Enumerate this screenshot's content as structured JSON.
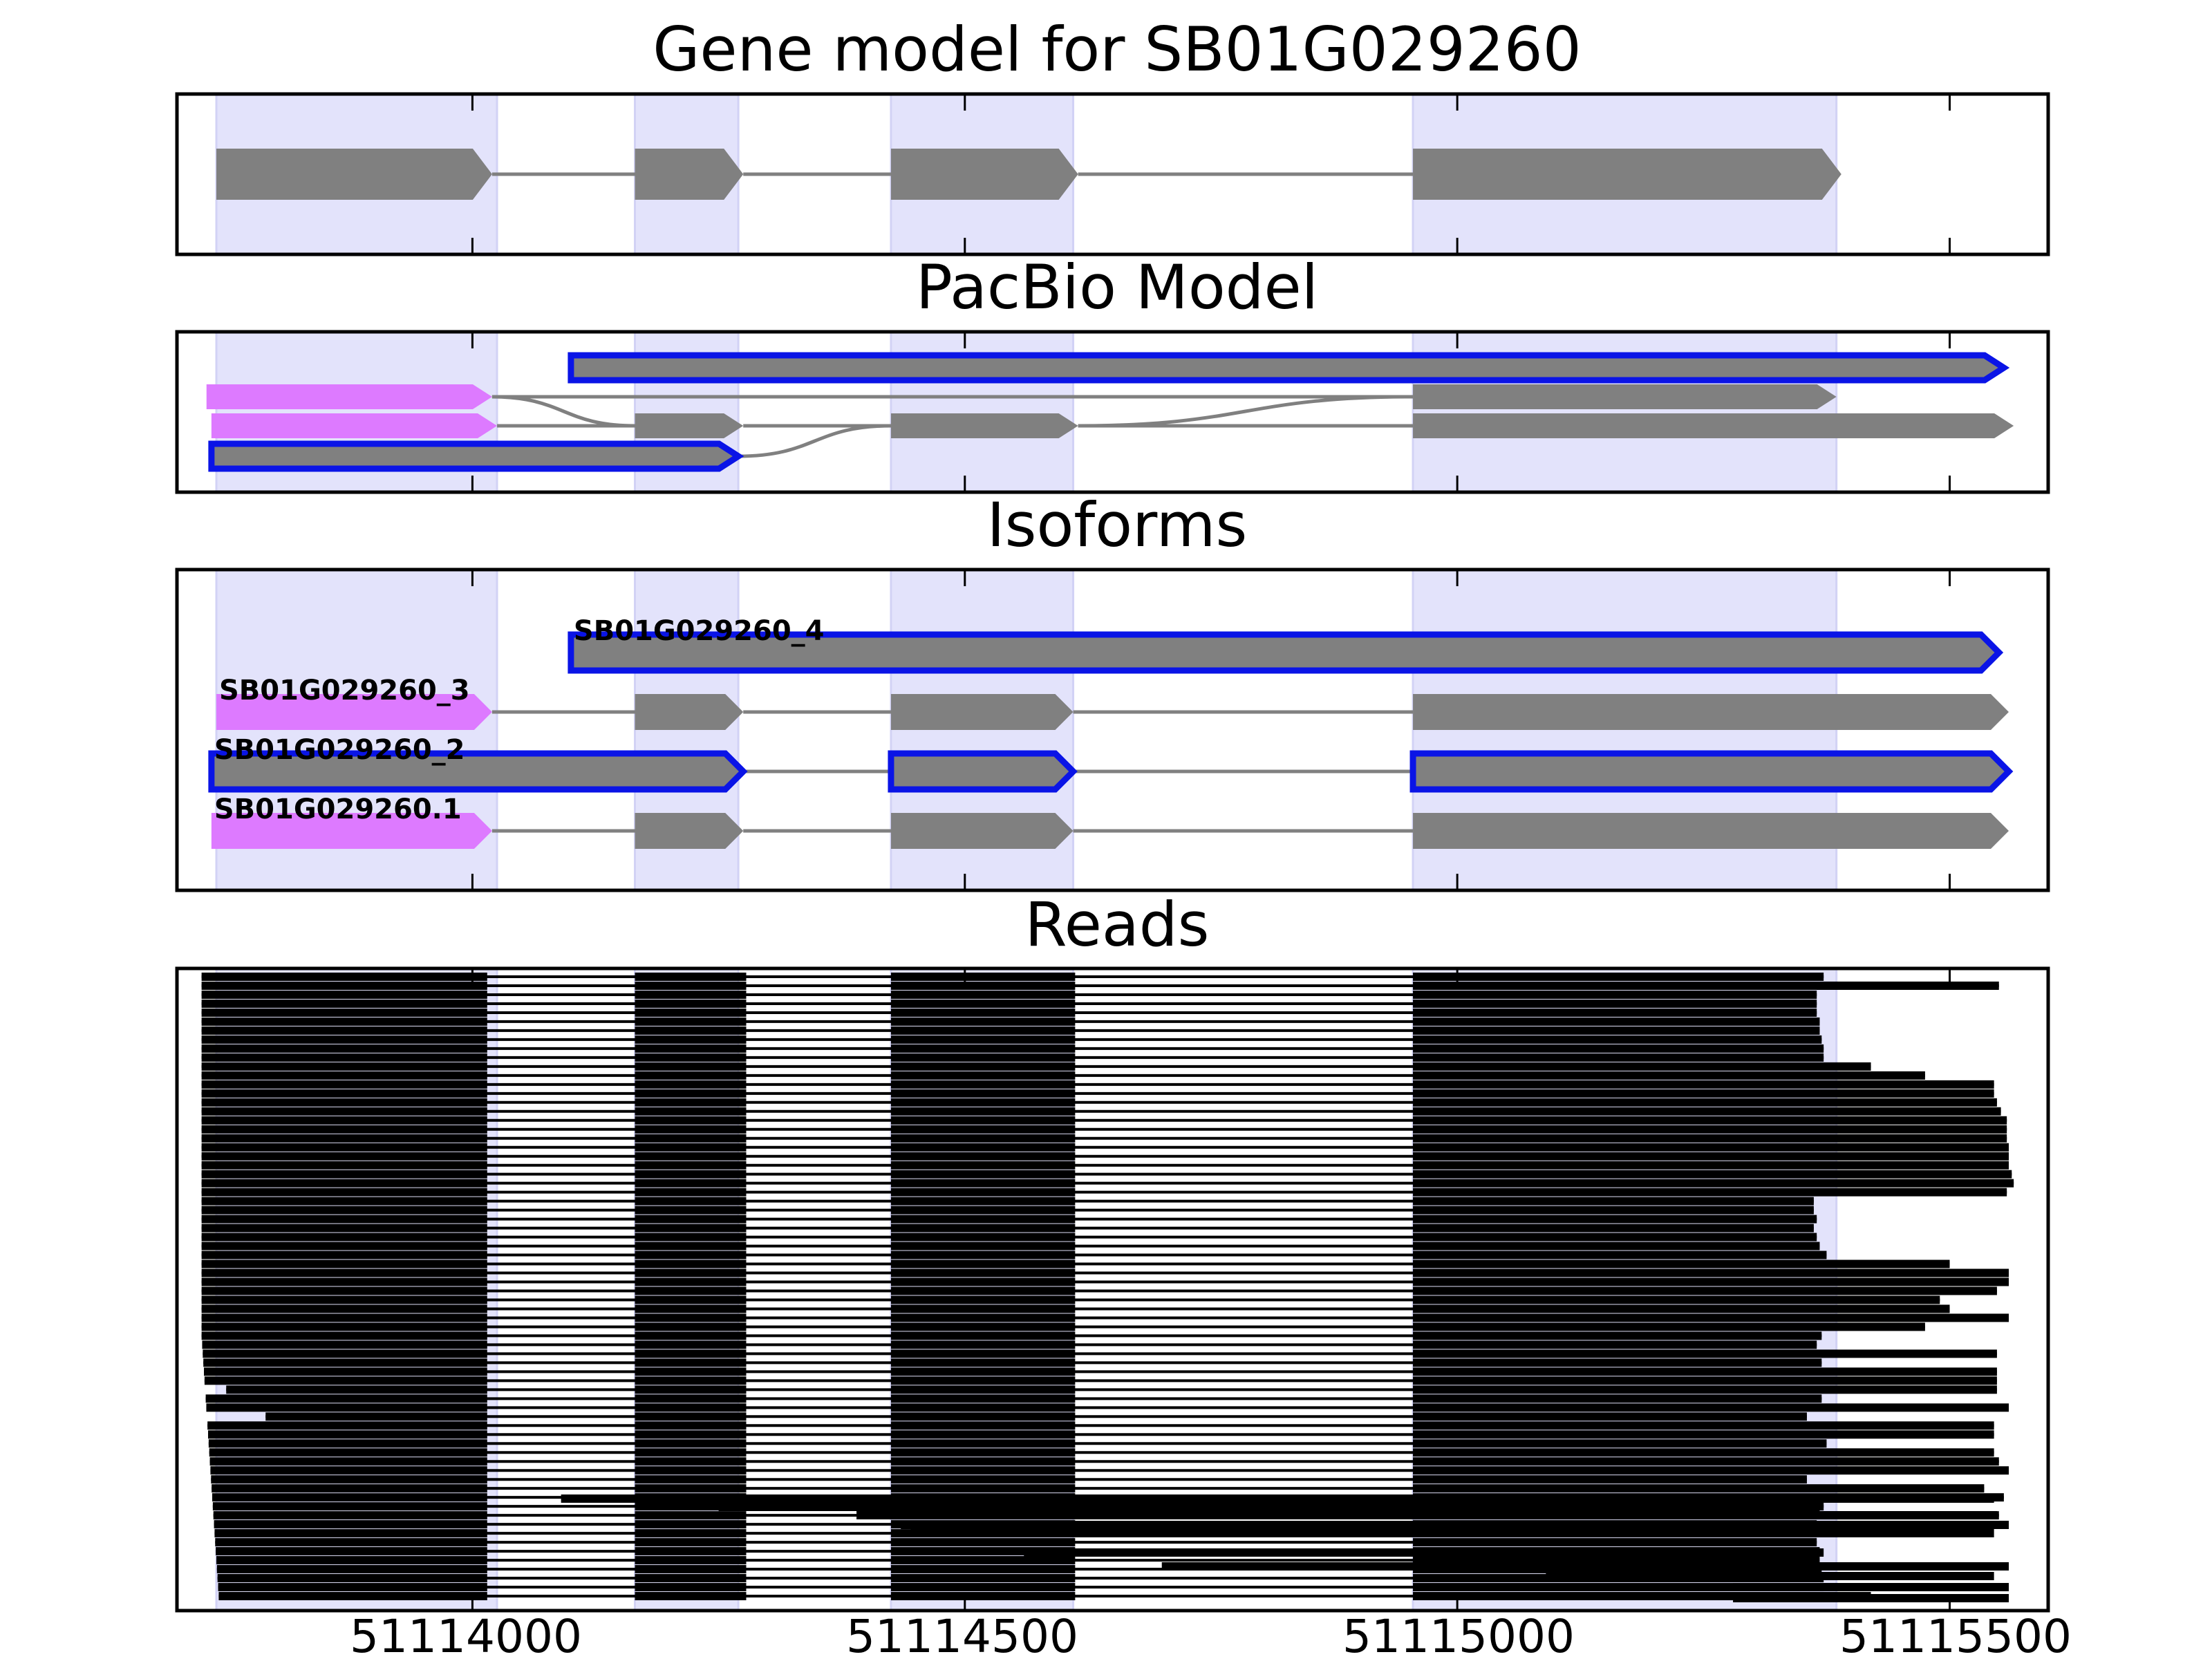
{
  "colors": {
    "exon_band": "#e3e3fb",
    "block": "#808080",
    "utr": "#dd7aff",
    "highlight_stroke": "#0a14e6",
    "read": "#000000",
    "intron_line": "#808080"
  },
  "chart_data": [
    {
      "type": "gene-model",
      "title": "Gene model for SB01G029260",
      "exon_bands": [
        [
          51113740,
          51114025
        ],
        [
          51114165,
          51114270
        ],
        [
          51114425,
          51114610
        ],
        [
          51114955,
          51115385
        ]
      ],
      "tracks": [
        {
          "blocks": [
            [
              51113740,
              51114020
            ],
            [
              51114165,
              51114275
            ],
            [
              51114425,
              51114615
            ],
            [
              51114955,
              51115390
            ]
          ]
        }
      ]
    },
    {
      "type": "gene-model",
      "title": "PacBio Model",
      "tracks": [
        {
          "highlight": true,
          "blocks": [
            [
              51114100,
              51115555
            ]
          ]
        },
        {
          "utr": [
            [
              51113730,
              51114020
            ]
          ],
          "blocks": [
            [
              51114955,
              51115385
            ]
          ]
        },
        {
          "utr": [
            [
              51113735,
              51114025
            ]
          ],
          "blocks": [
            [
              51114165,
              51114275
            ],
            [
              51114425,
              51114615
            ],
            [
              51114955,
              51115565
            ]
          ]
        },
        {
          "highlight": true,
          "blocks": [
            [
              51113735,
              51114270
            ]
          ]
        }
      ]
    },
    {
      "type": "gene-model",
      "title": "Isoforms",
      "tracks": [
        {
          "label": "SB01G029260_4",
          "highlight": true,
          "blocks": [
            [
              51114100,
              51115550
            ]
          ]
        },
        {
          "label": "SB01G029260_3",
          "utr": [
            [
              51113740,
              51114020
            ]
          ],
          "blocks": [
            [
              51114165,
              51114275
            ],
            [
              51114425,
              51114610
            ],
            [
              51114955,
              51115560
            ]
          ]
        },
        {
          "label": "SB01G029260_2",
          "highlight": true,
          "blocks": [
            [
              51113735,
              51114275
            ],
            [
              51114425,
              51114610
            ],
            [
              51114955,
              51115560
            ]
          ]
        },
        {
          "label": "SB01G029260.1",
          "utr": [
            [
              51113735,
              51114020
            ]
          ],
          "blocks": [
            [
              51114165,
              51114275
            ],
            [
              51114425,
              51114610
            ],
            [
              51114955,
              51115560
            ]
          ]
        }
      ]
    },
    {
      "type": "reads",
      "title": "Reads",
      "exons": [
        [
          51113740,
          51114015
        ],
        [
          51114165,
          51114278
        ],
        [
          51114425,
          51114612
        ],
        [
          51114955,
          51115375
        ]
      ],
      "read_ends": [
        51115372,
        51115550,
        51115365,
        51115365,
        51115365,
        51115368,
        51115368,
        51115370,
        51115372,
        51115372,
        51115420,
        51115475,
        51115545,
        51115545,
        51115548,
        51115552,
        51115558,
        51115558,
        51115558,
        51115560,
        51115560,
        51115560,
        51115563,
        51115565,
        51115558,
        51115362,
        51115362,
        51115365,
        51115362,
        51115365,
        51115368,
        51115375,
        51115500,
        51115560,
        51115560,
        51115548,
        51115490,
        51115500,
        51115560,
        51115475,
        51115370,
        51115365,
        51115548,
        51115370,
        51115548,
        51115548,
        51115548,
        51115370,
        51115560,
        51115355,
        51115545,
        51115545,
        51115375,
        51115545,
        51115550,
        51115560,
        51115355,
        51115535,
        51115555
      ],
      "x_range": [
        51113700,
        51115600
      ],
      "x_ticks": [
        "51114000",
        "51114500",
        "51115000",
        "51115500"
      ]
    }
  ]
}
